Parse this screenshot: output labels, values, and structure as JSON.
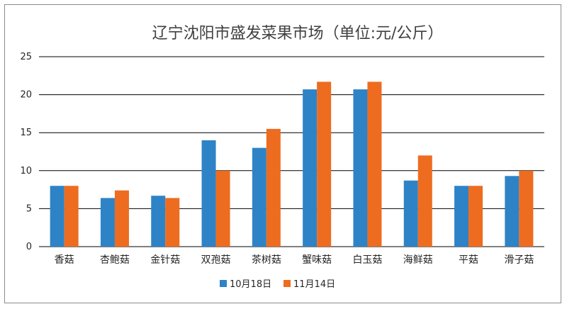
{
  "chart_data": {
    "type": "bar",
    "title": "辽宁沈阳市盛发菜果市场（单位:元/公斤）",
    "categories": [
      "香菇",
      "杏鲍菇",
      "金针菇",
      "双孢菇",
      "茶树菇",
      "蟹味菇",
      "白玉菇",
      "海鲜菇",
      "平菇",
      "滑子菇"
    ],
    "series": [
      {
        "name": "10月18日",
        "color": "#2e83c6",
        "values": [
          8,
          6.4,
          6.7,
          14,
          13,
          20.7,
          20.7,
          8.7,
          8,
          9.3
        ]
      },
      {
        "name": "11月14日",
        "color": "#ee6c1f",
        "values": [
          8,
          7.4,
          6.4,
          10,
          15.5,
          21.7,
          21.7,
          12,
          8,
          10
        ]
      }
    ],
    "ylim": [
      0,
      25
    ],
    "yticks": [
      0,
      5,
      10,
      15,
      20,
      25
    ],
    "grid": true,
    "legend_position": "bottom"
  }
}
